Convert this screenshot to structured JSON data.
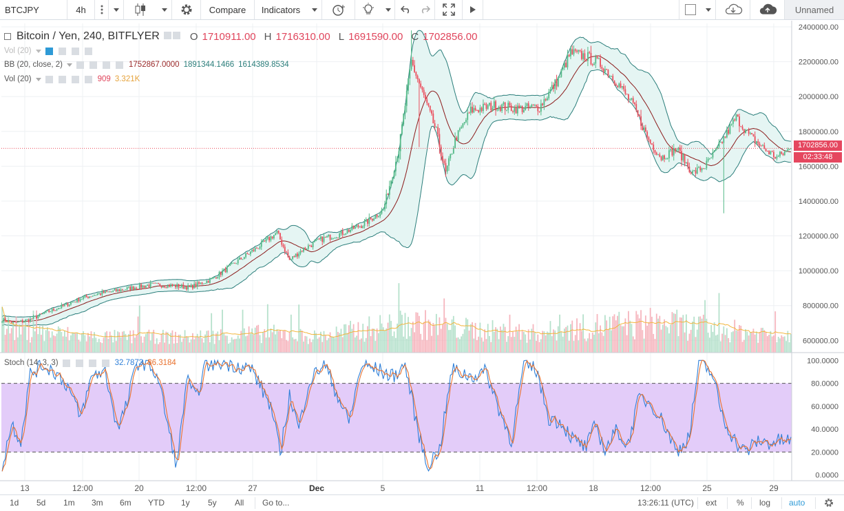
{
  "toolbar": {
    "symbol": "BTCJPY",
    "interval": "4h",
    "compare_label": "Compare",
    "indicators_label": "Indicators",
    "layout_name": "Unnamed"
  },
  "legend": {
    "title": "Bitcoin / Yen, 240, BITFLYER",
    "o_label": "O",
    "o_value": "1710911.00",
    "h_label": "H",
    "h_value": "1716310.00",
    "l_label": "L",
    "l_value": "1691590.00",
    "c_label": "C",
    "c_value": "1702856.00",
    "vol_collapsed": "Vol (20)",
    "bb_label": "BB (20, close, 2)",
    "bb_mid": "1752867.0000",
    "bb_upper": "1891344.1466",
    "bb_lower": "1614389.8534",
    "vol_label": "Vol (20)",
    "vol_value": "909",
    "vol_ma": "3.321K",
    "stoch_label": "Stoch (14, 3, 3)",
    "stoch_k": "32.7873",
    "stoch_d": "36.3184"
  },
  "price_axis": {
    "labels": [
      "2400000.00",
      "2200000.00",
      "2000000.00",
      "1800000.00",
      "1600000.00",
      "1400000.00",
      "1200000.00",
      "1000000.00",
      "800000.00",
      "600000.00"
    ],
    "last_price": "1702856.00",
    "countdown": "02:33:48"
  },
  "stoch_axis": {
    "labels": [
      "100.0000",
      "80.0000",
      "60.0000",
      "40.0000",
      "20.0000",
      "0.0000"
    ]
  },
  "time_axis": {
    "labels": [
      "13",
      "12:00",
      "20",
      "12:00",
      "27",
      "Dec",
      "5",
      "11",
      "12:00",
      "18",
      "12:00",
      "25",
      "29"
    ]
  },
  "bottombar": {
    "ranges": [
      "1d",
      "5d",
      "1m",
      "3m",
      "6m",
      "YTD",
      "1y",
      "5y",
      "All"
    ],
    "goto": "Go to...",
    "clock": "13:26:11 (UTC)",
    "ext": "ext",
    "percent": "%",
    "log": "log",
    "auto": "auto"
  },
  "colors": {
    "up": "#53b987",
    "down": "#eb4d5c",
    "bb_fill": "#e5f5f3",
    "bb_band": "#2a7d7a",
    "bb_mid": "#8b1a1a",
    "stoch_k": "#2e7fd8",
    "stoch_d": "#e8712e",
    "stoch_band": "#e3ccf9",
    "accent": "#2e9ad6"
  },
  "chart_data": {
    "type": "candlestick",
    "price_range": [
      530000,
      2420000
    ],
    "stoch_range": [
      -5,
      105
    ],
    "stoch_bands": [
      20,
      80
    ],
    "anchors": [
      [
        0,
        720000
      ],
      [
        8,
        700000
      ],
      [
        18,
        720000
      ],
      [
        28,
        760000
      ],
      [
        40,
        800000
      ],
      [
        50,
        840000
      ],
      [
        60,
        865000
      ],
      [
        70,
        880000
      ],
      [
        82,
        900000
      ],
      [
        96,
        920000
      ],
      [
        108,
        915000
      ],
      [
        120,
        905000
      ],
      [
        134,
        950000
      ],
      [
        150,
        1050000
      ],
      [
        166,
        1150000
      ],
      [
        176,
        1220000
      ],
      [
        184,
        1060000
      ],
      [
        192,
        1120000
      ],
      [
        204,
        1180000
      ],
      [
        216,
        1210000
      ],
      [
        232,
        1270000
      ],
      [
        244,
        1350000
      ],
      [
        254,
        1700000
      ],
      [
        262,
        2200000
      ],
      [
        270,
        2000000
      ],
      [
        278,
        1800000
      ],
      [
        284,
        1560000
      ],
      [
        290,
        1750000
      ],
      [
        300,
        1920000
      ],
      [
        316,
        1950000
      ],
      [
        330,
        1930000
      ],
      [
        344,
        1940000
      ],
      [
        356,
        2100000
      ],
      [
        364,
        2250000
      ],
      [
        374,
        2230000
      ],
      [
        384,
        2180000
      ],
      [
        394,
        2080000
      ],
      [
        404,
        1950000
      ],
      [
        414,
        1750000
      ],
      [
        422,
        1650000
      ],
      [
        432,
        1700000
      ],
      [
        442,
        1560000
      ],
      [
        450,
        1600000
      ],
      [
        458,
        1700000
      ],
      [
        470,
        1880000
      ],
      [
        478,
        1780000
      ],
      [
        488,
        1700000
      ],
      [
        496,
        1650000
      ],
      [
        505,
        1702856
      ]
    ],
    "volume_anchors": [
      [
        0,
        680000
      ],
      [
        20,
        650000
      ],
      [
        60,
        620000
      ],
      [
        120,
        620000
      ],
      [
        170,
        640000
      ],
      [
        200,
        620000
      ],
      [
        260,
        700000
      ],
      [
        300,
        660000
      ],
      [
        340,
        640000
      ],
      [
        380,
        680000
      ],
      [
        420,
        700000
      ],
      [
        460,
        660000
      ],
      [
        505,
        630000
      ]
    ],
    "stoch_k_anchors": [
      [
        0,
        8
      ],
      [
        6,
        45
      ],
      [
        12,
        30
      ],
      [
        18,
        88
      ],
      [
        26,
        96
      ],
      [
        34,
        90
      ],
      [
        42,
        78
      ],
      [
        50,
        50
      ],
      [
        58,
        88
      ],
      [
        66,
        90
      ],
      [
        74,
        40
      ],
      [
        80,
        62
      ],
      [
        86,
        98
      ],
      [
        94,
        98
      ],
      [
        100,
        84
      ],
      [
        108,
        30
      ],
      [
        112,
        8
      ],
      [
        118,
        84
      ],
      [
        124,
        66
      ],
      [
        130,
        96
      ],
      [
        140,
        98
      ],
      [
        150,
        96
      ],
      [
        160,
        92
      ],
      [
        172,
        60
      ],
      [
        178,
        18
      ],
      [
        184,
        70
      ],
      [
        190,
        40
      ],
      [
        196,
        80
      ],
      [
        206,
        98
      ],
      [
        214,
        72
      ],
      [
        222,
        46
      ],
      [
        230,
        96
      ],
      [
        240,
        92
      ],
      [
        250,
        86
      ],
      [
        258,
        96
      ],
      [
        266,
        40
      ],
      [
        272,
        8
      ],
      [
        280,
        22
      ],
      [
        288,
        92
      ],
      [
        300,
        86
      ],
      [
        310,
        90
      ],
      [
        318,
        58
      ],
      [
        326,
        30
      ],
      [
        334,
        96
      ],
      [
        342,
        92
      ],
      [
        350,
        50
      ],
      [
        358,
        46
      ],
      [
        366,
        30
      ],
      [
        374,
        24
      ],
      [
        380,
        44
      ],
      [
        386,
        22
      ],
      [
        394,
        40
      ],
      [
        400,
        24
      ],
      [
        408,
        68
      ],
      [
        416,
        62
      ],
      [
        424,
        44
      ],
      [
        432,
        20
      ],
      [
        440,
        34
      ],
      [
        446,
        98
      ],
      [
        454,
        90
      ],
      [
        462,
        48
      ],
      [
        470,
        28
      ],
      [
        476,
        20
      ],
      [
        484,
        30
      ],
      [
        490,
        28
      ],
      [
        500,
        30
      ]
    ]
  }
}
